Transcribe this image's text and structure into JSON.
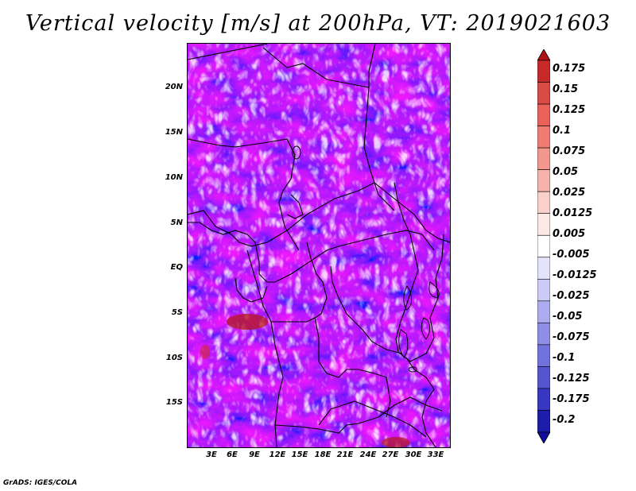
{
  "title": "Vertical velocity [m/s] at 200hPa, VT: 2019021603",
  "credit": "GrADS: IGES/COLA",
  "map": {
    "lat_labels": [
      "20N",
      "15N",
      "10N",
      "5N",
      "EQ",
      "5S",
      "10S",
      "15S"
    ],
    "lon_labels": [
      "3E",
      "6E",
      "9E",
      "12E",
      "15E",
      "18E",
      "21E",
      "24E",
      "27E",
      "30E",
      "33E"
    ],
    "lon_range": [
      0,
      34.5
    ],
    "lat_range": [
      -19.5,
      25
    ],
    "features": "vertical velocity field with country borders and coastlines"
  },
  "colorbar": {
    "labels": [
      "0.175",
      "0.15",
      "0.125",
      "0.1",
      "0.075",
      "0.05",
      "0.025",
      "0.0125",
      "0.005",
      "-0.005",
      "-0.0125",
      "-0.025",
      "-0.05",
      "-0.075",
      "-0.1",
      "-0.125",
      "-0.175",
      "-0.2"
    ],
    "colors": [
      "#b11212",
      "#c72a28",
      "#d94a44",
      "#e8625a",
      "#ef7d73",
      "#f3978e",
      "#f6b3ab",
      "#f9d0cb",
      "#fbe9e7",
      "#ffffff",
      "#e3e3fb",
      "#cbcbf5",
      "#acacef",
      "#8f8fe7",
      "#7272dd",
      "#5555d2",
      "#3737c2",
      "#1d1dac",
      "#120fa0"
    ]
  }
}
